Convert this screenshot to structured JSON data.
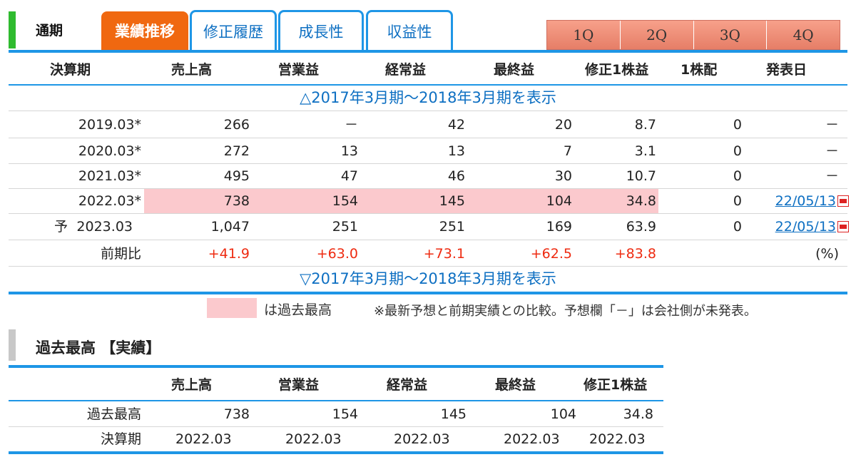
{
  "tabs": {
    "period_label": "通期",
    "active": "業績推移",
    "revision": "修正履歴",
    "growth": "成長性",
    "profitability": "収益性"
  },
  "quarters": [
    "1Q",
    "2Q",
    "3Q",
    "4Q"
  ],
  "headers": [
    "決算期",
    "売上高",
    "営業益",
    "経常益",
    "最終益",
    "修正1株益",
    "1株配",
    "発表日"
  ],
  "toggle_top": "△2017年3月期～2018年3月期を表示",
  "toggle_bottom": "▽2017年3月期～2018年3月期を表示",
  "rows": [
    {
      "period": "2019.03*",
      "sales": "266",
      "op": "－",
      "ord": "42",
      "net": "20",
      "eps": "8.7",
      "div": "0",
      "date": "－"
    },
    {
      "period": "2020.03*",
      "sales": "272",
      "op": "13",
      "ord": "13",
      "net": "7",
      "eps": "3.1",
      "div": "0",
      "date": "－"
    },
    {
      "period": "2021.03*",
      "sales": "495",
      "op": "47",
      "ord": "46",
      "net": "30",
      "eps": "10.7",
      "div": "0",
      "date": "－"
    },
    {
      "period": "2022.03*",
      "sales": "738",
      "op": "154",
      "ord": "145",
      "net": "104",
      "eps": "34.8",
      "div": "0",
      "date": "22/05/13"
    },
    {
      "forecast_mark": "予",
      "period": "2023.03",
      "sales": "1,047",
      "op": "251",
      "ord": "251",
      "net": "169",
      "eps": "63.9",
      "div": "0",
      "date": "22/05/13"
    }
  ],
  "yoy": {
    "label": "前期比",
    "sales": "+41.9",
    "op": "+63.0",
    "ord": "+73.1",
    "net": "+62.5",
    "eps": "+83.8",
    "unit": "(%)"
  },
  "legend": {
    "text": "は過去最高",
    "note": "※最新予想と前期実績との比較。予想欄「－」は会社側が未発表。"
  },
  "record": {
    "title": "過去最高 【実績】",
    "headers": [
      "売上高",
      "営業益",
      "経常益",
      "最終益",
      "修正1株益"
    ],
    "high_label": "過去最高",
    "high": [
      "738",
      "154",
      "145",
      "104",
      "34.8"
    ],
    "period_label": "決算期",
    "period": [
      "2022.03",
      "2022.03",
      "2022.03",
      "2022.03",
      "2022.03"
    ]
  },
  "colors": {
    "accent_orange": "#f06810",
    "tab_blue": "#1e96e6",
    "green": "#2fbb2f",
    "record_pink": "#fbc9cd",
    "up_red": "#ee2a10"
  }
}
